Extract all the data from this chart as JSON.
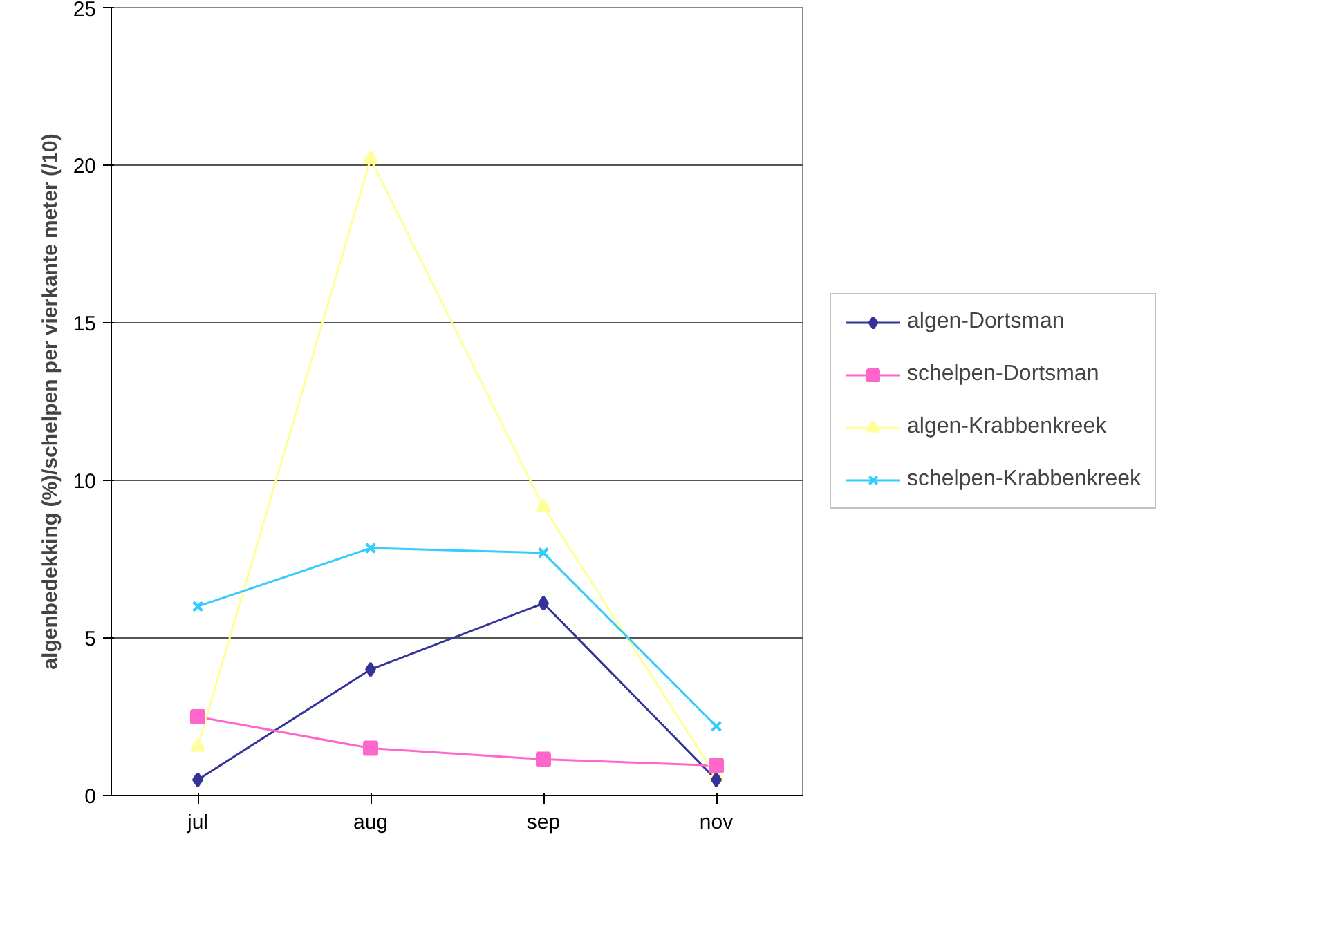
{
  "chart_data": {
    "type": "line",
    "ylabel": "algenbedekking (%)/schelpen per vierkante meter (/10)",
    "categories": [
      "jul",
      "aug",
      "sep",
      "nov"
    ],
    "series": [
      {
        "name": "algen-Dortsman",
        "color": "#333399",
        "marker": "diamond",
        "values": [
          0.5,
          4.0,
          6.1,
          0.5
        ]
      },
      {
        "name": "schelpen-Dortsman",
        "color": "#ff66cc",
        "marker": "square",
        "values": [
          2.5,
          1.5,
          1.15,
          0.95
        ]
      },
      {
        "name": "algen-Krabbenkreek",
        "color": "#ffff99",
        "marker": "triangle",
        "values": [
          1.55,
          20.2,
          9.15,
          0.6
        ]
      },
      {
        "name": "schelpen-Krabbenkreek",
        "color": "#33ccff",
        "marker": "cross",
        "values": [
          6.0,
          7.85,
          7.7,
          2.2
        ]
      }
    ],
    "ylim": [
      0,
      25
    ],
    "yticks": [
      0,
      5,
      10,
      15,
      20,
      25
    ],
    "grid": "y",
    "legend": "right"
  }
}
